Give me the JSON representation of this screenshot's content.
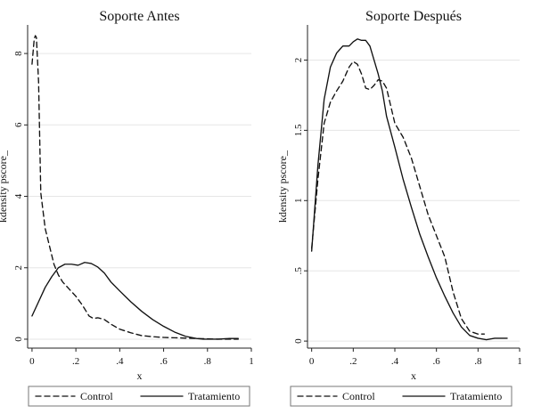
{
  "chart_data": [
    {
      "type": "line",
      "title": "Soporte Antes",
      "xlabel": "x",
      "ylabel": "kdensity pscore_",
      "xlim": [
        -0.02,
        1.0
      ],
      "ylim": [
        -0.25,
        8.8
      ],
      "xticks": [
        0,
        0.2,
        0.4,
        0.6,
        0.8,
        1
      ],
      "xtick_labels": [
        "0",
        ".2",
        ".4",
        ".6",
        ".8",
        "1"
      ],
      "yticks": [
        0,
        2,
        4,
        6,
        8
      ],
      "ytick_labels": [
        "0",
        "2",
        "4",
        "6",
        "8"
      ],
      "grid": true,
      "series": [
        {
          "name": "Control",
          "style": "dashed",
          "x": [
            0.0,
            0.01,
            0.015,
            0.02,
            0.03,
            0.04,
            0.06,
            0.08,
            0.1,
            0.12,
            0.14,
            0.17,
            0.2,
            0.23,
            0.26,
            0.28,
            0.3,
            0.33,
            0.36,
            0.4,
            0.45,
            0.5,
            0.55,
            0.6,
            0.65,
            0.7,
            0.75,
            0.8,
            0.85,
            0.9,
            0.94
          ],
          "y": [
            7.7,
            8.4,
            8.5,
            8.45,
            7.2,
            4.1,
            3.1,
            2.6,
            2.1,
            1.8,
            1.6,
            1.4,
            1.2,
            0.95,
            0.65,
            0.58,
            0.6,
            0.55,
            0.42,
            0.28,
            0.18,
            0.1,
            0.07,
            0.05,
            0.04,
            0.03,
            0.02,
            0.01,
            0.0,
            0.0,
            0.0
          ]
        },
        {
          "name": "Tratamiento",
          "style": "solid",
          "x": [
            0.0,
            0.03,
            0.06,
            0.09,
            0.12,
            0.15,
            0.18,
            0.21,
            0.24,
            0.27,
            0.3,
            0.33,
            0.36,
            0.4,
            0.45,
            0.5,
            0.55,
            0.6,
            0.65,
            0.7,
            0.75,
            0.78,
            0.8,
            0.85,
            0.9,
            0.94
          ],
          "y": [
            0.65,
            1.05,
            1.45,
            1.75,
            2.0,
            2.1,
            2.1,
            2.07,
            2.15,
            2.12,
            2.02,
            1.85,
            1.6,
            1.35,
            1.05,
            0.78,
            0.55,
            0.36,
            0.2,
            0.08,
            0.02,
            0.0,
            0.0,
            0.0,
            0.02,
            0.02
          ]
        }
      ]
    },
    {
      "type": "line",
      "title": "Soporte Después",
      "xlabel": "x",
      "ylabel": "kdensity pscore_",
      "xlim": [
        -0.02,
        1.0
      ],
      "ylim": [
        -0.05,
        2.25
      ],
      "xticks": [
        0,
        0.2,
        0.4,
        0.6,
        0.8,
        1
      ],
      "xtick_labels": [
        "0",
        ".2",
        ".4",
        ".6",
        ".8",
        "1"
      ],
      "yticks": [
        0,
        0.5,
        1,
        1.5,
        2
      ],
      "ytick_labels": [
        "0",
        ".5",
        "1",
        "1.5",
        "2"
      ],
      "grid": true,
      "series": [
        {
          "name": "Control",
          "style": "dashed",
          "x": [
            0.0,
            0.03,
            0.06,
            0.09,
            0.12,
            0.15,
            0.18,
            0.2,
            0.22,
            0.24,
            0.26,
            0.28,
            0.3,
            0.32,
            0.34,
            0.36,
            0.4,
            0.44,
            0.48,
            0.52,
            0.56,
            0.6,
            0.64,
            0.68,
            0.72,
            0.76,
            0.8,
            0.83
          ],
          "y": [
            0.66,
            1.15,
            1.55,
            1.7,
            1.78,
            1.85,
            1.95,
            1.99,
            1.97,
            1.9,
            1.8,
            1.79,
            1.82,
            1.86,
            1.85,
            1.8,
            1.55,
            1.45,
            1.3,
            1.1,
            0.9,
            0.75,
            0.6,
            0.35,
            0.16,
            0.07,
            0.05,
            0.05
          ]
        },
        {
          "name": "Tratamiento",
          "style": "solid",
          "x": [
            0.0,
            0.03,
            0.06,
            0.09,
            0.12,
            0.15,
            0.18,
            0.2,
            0.22,
            0.24,
            0.26,
            0.28,
            0.3,
            0.32,
            0.34,
            0.36,
            0.4,
            0.44,
            0.48,
            0.52,
            0.56,
            0.6,
            0.64,
            0.68,
            0.72,
            0.76,
            0.8,
            0.84,
            0.88,
            0.92,
            0.94
          ],
          "y": [
            0.64,
            1.25,
            1.72,
            1.95,
            2.05,
            2.1,
            2.1,
            2.13,
            2.15,
            2.14,
            2.14,
            2.1,
            2.0,
            1.9,
            1.78,
            1.6,
            1.38,
            1.15,
            0.95,
            0.76,
            0.6,
            0.45,
            0.32,
            0.2,
            0.1,
            0.04,
            0.02,
            0.01,
            0.02,
            0.02,
            0.02
          ]
        }
      ]
    }
  ],
  "legend": {
    "control_label": "Control",
    "treatment_label": "Tratamiento"
  }
}
